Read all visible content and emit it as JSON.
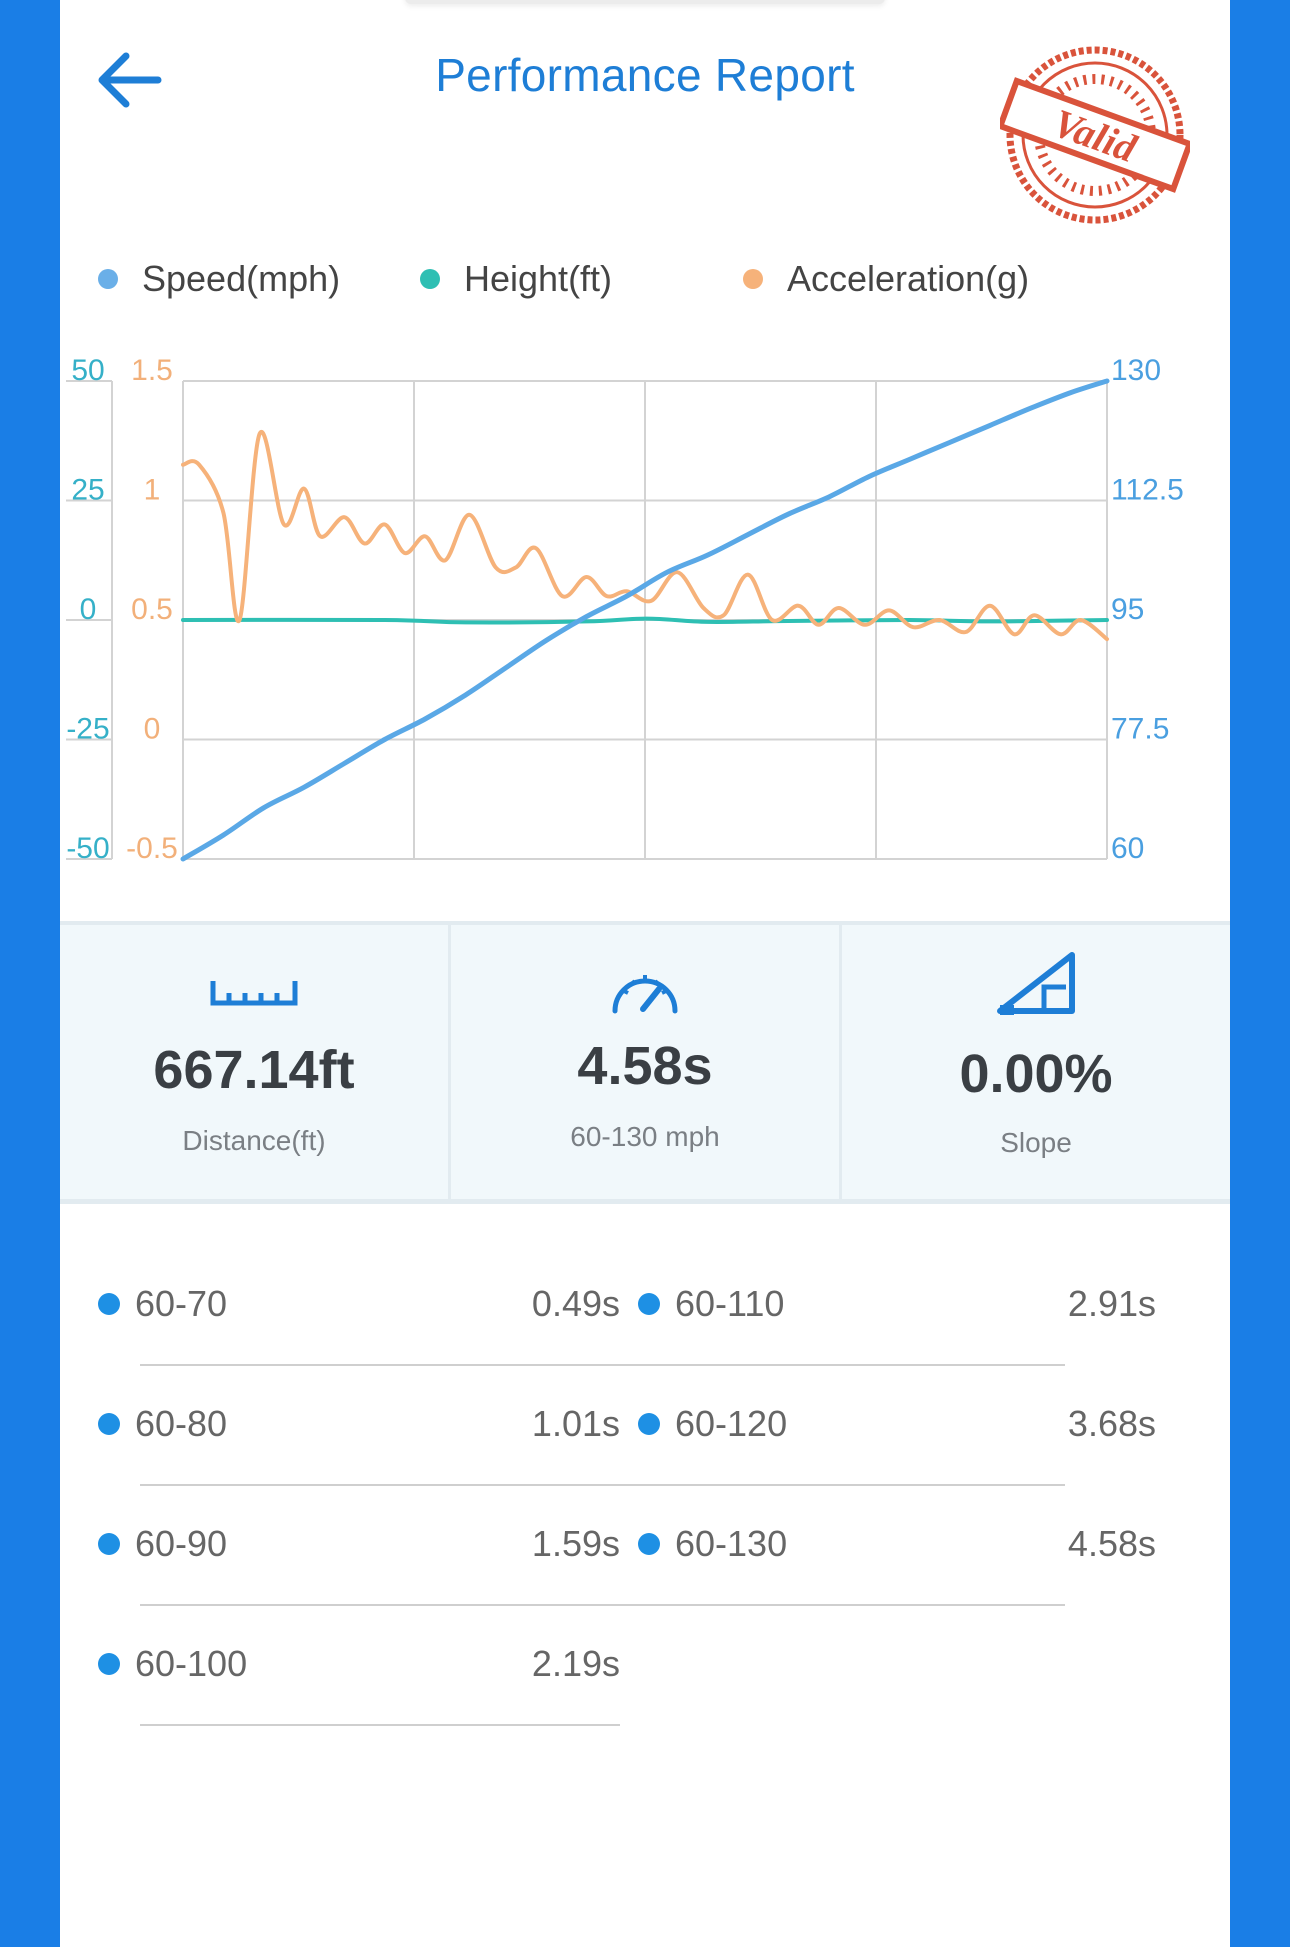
{
  "header": {
    "title": "Performance Report",
    "stamp_text": "Valid",
    "back_icon": "arrow-left-icon"
  },
  "legend": [
    {
      "label": "Speed(mph)",
      "color": "#6aafe8"
    },
    {
      "label": "Height(ft)",
      "color": "#2ebfb3"
    },
    {
      "label": "Acceleration(g)",
      "color": "#f6b27a"
    }
  ],
  "chart_data": {
    "type": "line",
    "grid": true,
    "axes": {
      "height_ticks": [
        "50",
        "25",
        "0",
        "-25",
        "-50"
      ],
      "acceleration_ticks": [
        "1.5",
        "1",
        "0.5",
        "0",
        "-0.5"
      ],
      "speed_ticks": [
        "130",
        "112.5",
        "95",
        "77.5",
        "60"
      ],
      "height_range": [
        -50,
        50
      ],
      "acceleration_range": [
        -0.5,
        1.5
      ],
      "speed_range": [
        60,
        130
      ],
      "x_range": [
        0,
        4.58
      ]
    },
    "series": [
      {
        "name": "Speed(mph)",
        "axis": "speed",
        "color": "#5aa8e6",
        "x": [
          0,
          0.2,
          0.4,
          0.6,
          0.8,
          1.0,
          1.2,
          1.4,
          1.6,
          1.8,
          2.0,
          2.2,
          2.4,
          2.6,
          2.8,
          3.0,
          3.2,
          3.4,
          3.6,
          3.8,
          4.0,
          4.2,
          4.4,
          4.58
        ],
        "values": [
          60,
          63.5,
          67.5,
          70.5,
          74,
          77.5,
          80.5,
          84,
          88,
          92,
          95.5,
          98.5,
          102,
          104.5,
          107.5,
          110.5,
          113,
          116,
          118.5,
          121,
          123.5,
          126,
          128.3,
          130
        ]
      },
      {
        "name": "Height(ft)",
        "axis": "height",
        "color": "#2ebfb3",
        "x": [
          0,
          1.0,
          1.4,
          2.0,
          2.3,
          2.6,
          3.0,
          3.6,
          4.0,
          4.58
        ],
        "values": [
          0,
          0,
          -0.5,
          -0.3,
          0.3,
          -0.4,
          -0.2,
          0,
          -0.3,
          0
        ]
      },
      {
        "name": "Acceleration(g)",
        "axis": "acceleration",
        "color": "#f6b27a",
        "x": [
          0,
          0.08,
          0.2,
          0.28,
          0.38,
          0.5,
          0.6,
          0.68,
          0.8,
          0.9,
          1.0,
          1.1,
          1.2,
          1.3,
          1.42,
          1.55,
          1.65,
          1.75,
          1.88,
          2.0,
          2.1,
          2.2,
          2.32,
          2.45,
          2.58,
          2.68,
          2.8,
          2.92,
          3.05,
          3.15,
          3.25,
          3.38,
          3.5,
          3.62,
          3.75,
          3.88,
          4.0,
          4.12,
          4.22,
          4.35,
          4.45,
          4.58
        ],
        "values": [
          1.15,
          1.15,
          0.95,
          0.5,
          1.28,
          0.9,
          1.05,
          0.85,
          0.93,
          0.82,
          0.9,
          0.78,
          0.85,
          0.75,
          0.94,
          0.72,
          0.72,
          0.8,
          0.6,
          0.68,
          0.6,
          0.62,
          0.58,
          0.7,
          0.55,
          0.52,
          0.69,
          0.5,
          0.56,
          0.48,
          0.55,
          0.48,
          0.54,
          0.47,
          0.5,
          0.45,
          0.56,
          0.44,
          0.52,
          0.44,
          0.5,
          0.42
        ]
      }
    ]
  },
  "stats": [
    {
      "icon": "ruler-icon",
      "value": "667.14ft",
      "label": "Distance(ft)"
    },
    {
      "icon": "speedometer-icon",
      "value": "4.58s",
      "label": "60-130 mph"
    },
    {
      "icon": "slope-icon",
      "value": "0.00%",
      "label": "Slope"
    }
  ],
  "splits": {
    "left": [
      {
        "range": "60-70",
        "time": "0.49s"
      },
      {
        "range": "60-80",
        "time": "1.01s"
      },
      {
        "range": "60-90",
        "time": "1.59s"
      },
      {
        "range": "60-100",
        "time": "2.19s"
      }
    ],
    "right": [
      {
        "range": "60-110",
        "time": "2.91s"
      },
      {
        "range": "60-120",
        "time": "3.68s"
      },
      {
        "range": "60-130",
        "time": "4.58s"
      }
    ]
  }
}
